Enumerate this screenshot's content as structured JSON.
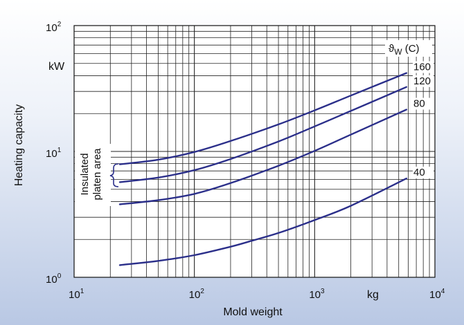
{
  "chart_data": {
    "type": "line",
    "xlabel": "Mold weight",
    "ylabel": "Heating capacity",
    "x_unit": "kg",
    "y_unit": "kW",
    "x_scale": "log",
    "y_scale": "log",
    "xlim": [
      10,
      10000
    ],
    "ylim": [
      1,
      100
    ],
    "grid": true,
    "x_ticks": [
      {
        "base": "10",
        "exp": "1"
      },
      {
        "base": "10",
        "exp": "2"
      },
      {
        "base": "10",
        "exp": "3"
      },
      {
        "base": "10",
        "exp": "4"
      }
    ],
    "y_ticks": [
      {
        "base": "10",
        "exp": "0"
      },
      {
        "base": "10",
        "exp": "1"
      },
      {
        "base": "10",
        "exp": "2"
      }
    ],
    "legend_title": {
      "symbol": "ϑ",
      "subscript": "W",
      "unit": " (C)"
    },
    "annotation": {
      "line1": "Insulated",
      "line2": "platen area"
    },
    "series": [
      {
        "name": "160",
        "x": [
          24,
          50,
          100,
          200,
          500,
          1000,
          2000,
          5800
        ],
        "y": [
          7.9,
          8.6,
          9.9,
          12.1,
          16.4,
          21.2,
          27.8,
          42
        ]
      },
      {
        "name": "120",
        "x": [
          24,
          50,
          100,
          200,
          500,
          1000,
          2000,
          5800
        ],
        "y": [
          5.7,
          6.2,
          7.1,
          8.7,
          12.0,
          15.8,
          21.0,
          32.5
        ]
      },
      {
        "name": "80",
        "x": [
          24,
          50,
          100,
          200,
          500,
          1000,
          2000,
          5800
        ],
        "y": [
          3.8,
          4.1,
          4.6,
          5.6,
          7.7,
          10.1,
          13.6,
          21.5
        ]
      },
      {
        "name": "40",
        "x": [
          24,
          50,
          100,
          200,
          300,
          500,
          1000,
          2000,
          5800
        ],
        "y": [
          1.25,
          1.35,
          1.5,
          1.75,
          1.95,
          2.25,
          2.85,
          3.7,
          6.1
        ]
      }
    ]
  }
}
